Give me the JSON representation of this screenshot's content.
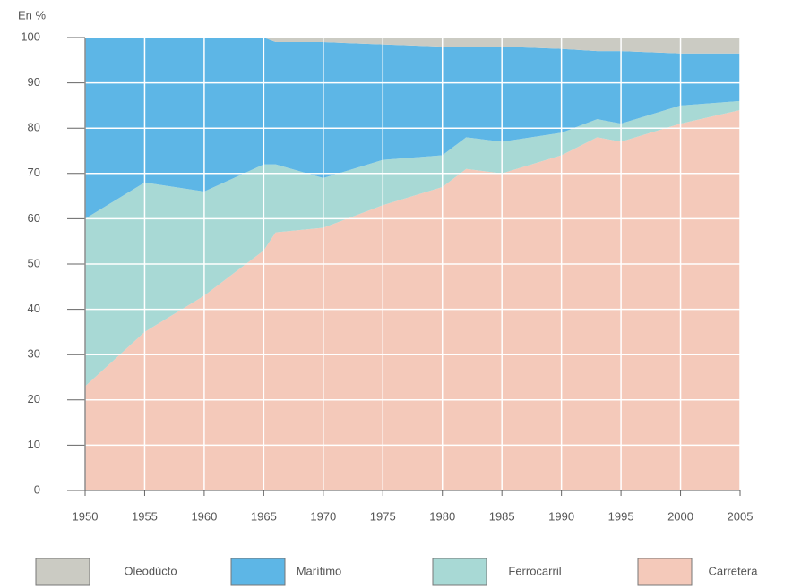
{
  "chart_data": {
    "type": "area",
    "stacked": true,
    "y_axis_label": "En %",
    "x": [
      1950,
      1955,
      1960,
      1965,
      1966,
      1970,
      1975,
      1980,
      1982,
      1985,
      1990,
      1993,
      1995,
      2000,
      2005
    ],
    "series": [
      {
        "name": "Carretera",
        "color": "#f4c9ba",
        "values": [
          23,
          35,
          43,
          53,
          57,
          58,
          63,
          67,
          71,
          70,
          74,
          78,
          77,
          81,
          84
        ]
      },
      {
        "name": "Ferrocarril",
        "color": "#a8d9d5",
        "values": [
          37,
          33,
          23,
          19,
          15,
          11,
          10,
          7,
          7,
          7,
          5,
          4,
          4,
          4,
          2
        ]
      },
      {
        "name": "Marítimo",
        "color": "#5db6e6",
        "values": [
          40,
          32,
          34,
          28,
          27,
          30,
          25.5,
          24,
          20,
          21,
          18.5,
          15,
          16,
          11.5,
          10.5
        ]
      },
      {
        "name": "Oleodúcto",
        "color": "#cbcbc3",
        "values": [
          0,
          0,
          0,
          0,
          1,
          1,
          1.5,
          2,
          2,
          2,
          2.5,
          3,
          3,
          3.5,
          3.5
        ]
      }
    ],
    "xlim": [
      1950,
      2005
    ],
    "xticks": [
      1950,
      1955,
      1960,
      1965,
      1970,
      1975,
      1980,
      1985,
      1990,
      1995,
      2000,
      2005
    ],
    "ylim": [
      0,
      100
    ],
    "yticks": [
      0,
      10,
      20,
      30,
      40,
      50,
      60,
      70,
      80,
      90,
      100
    ],
    "grid": true
  }
}
